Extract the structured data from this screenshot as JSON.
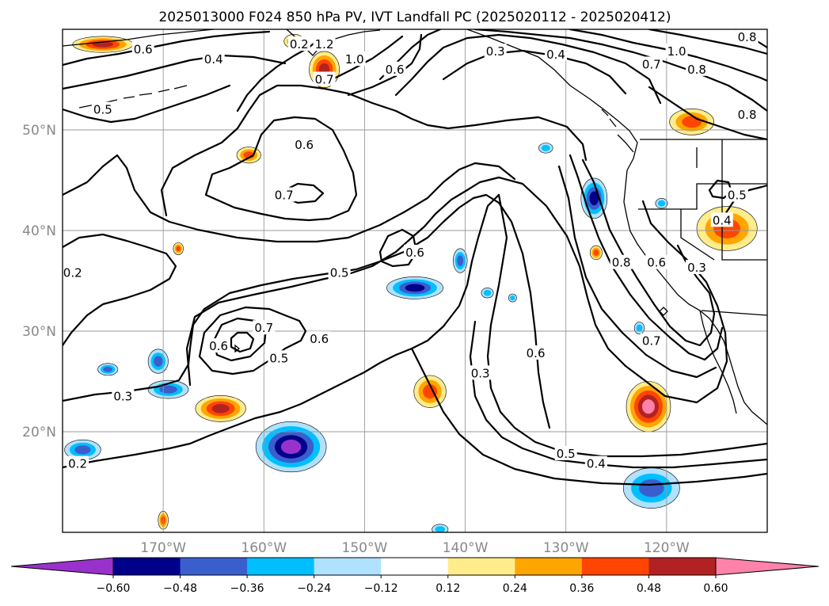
{
  "title": "2025013000 F024 850 hPa PV, IVT Landfall PC (2025020112 - 2025020412)",
  "map": {
    "projection": "PlateCarree",
    "extent": {
      "lon": [
        -180,
        -110
      ],
      "lat": [
        10,
        60
      ]
    },
    "lat_ticks": [
      {
        "value": 20,
        "label": "20°N"
      },
      {
        "value": 30,
        "label": "30°N"
      },
      {
        "value": 40,
        "label": "40°N"
      },
      {
        "value": 50,
        "label": "50°N"
      }
    ],
    "lon_ticks": [
      {
        "value": -170,
        "label": "170°W"
      },
      {
        "value": -160,
        "label": "160°W"
      },
      {
        "value": -150,
        "label": "150°W"
      },
      {
        "value": -140,
        "label": "140°W"
      },
      {
        "value": -130,
        "label": "130°W"
      },
      {
        "value": -120,
        "label": "120°W"
      }
    ],
    "gridlines": true
  },
  "contour_labels": [
    {
      "text": "0.6",
      "lon": -172,
      "lat": 58
    },
    {
      "text": "0.4",
      "lon": -165,
      "lat": 57
    },
    {
      "text": "0.2",
      "lon": -156.5,
      "lat": 58.5
    },
    {
      "text": "1.2",
      "lon": -154,
      "lat": 58.5
    },
    {
      "text": "0.7",
      "lon": -154,
      "lat": 55
    },
    {
      "text": "1.0",
      "lon": -151,
      "lat": 57
    },
    {
      "text": "0.6",
      "lon": -147,
      "lat": 56
    },
    {
      "text": "0.5",
      "lon": -176,
      "lat": 52
    },
    {
      "text": "0.3",
      "lon": -137,
      "lat": 57.8
    },
    {
      "text": "0.4",
      "lon": -131,
      "lat": 57.5
    },
    {
      "text": "1.0",
      "lon": -119,
      "lat": 57.8
    },
    {
      "text": "0.7",
      "lon": -121.5,
      "lat": 56.5
    },
    {
      "text": "0.8",
      "lon": -117,
      "lat": 56
    },
    {
      "text": "0.8",
      "lon": -112,
      "lat": 59.2
    },
    {
      "text": "0.8",
      "lon": -112,
      "lat": 51.5
    },
    {
      "text": "0.6",
      "lon": -156,
      "lat": 48.5
    },
    {
      "text": "0.7",
      "lon": -158,
      "lat": 43.5
    },
    {
      "text": "0.5",
      "lon": -113,
      "lat": 43.5
    },
    {
      "text": "0.4",
      "lon": -114.5,
      "lat": 41
    },
    {
      "text": "0.6",
      "lon": -145,
      "lat": 37.8
    },
    {
      "text": "0.5",
      "lon": -152.5,
      "lat": 35.8
    },
    {
      "text": "0.8",
      "lon": -124.5,
      "lat": 36.8
    },
    {
      "text": "0.6",
      "lon": -121,
      "lat": 36.8
    },
    {
      "text": "0.3",
      "lon": -117,
      "lat": 36.3
    },
    {
      "text": "0.2",
      "lon": -179,
      "lat": 35.8
    },
    {
      "text": "0.7",
      "lon": -160,
      "lat": 30.3
    },
    {
      "text": "0.6",
      "lon": -154.5,
      "lat": 29.2
    },
    {
      "text": "0.6",
      "lon": -164.5,
      "lat": 28.5
    },
    {
      "text": "0.5",
      "lon": -158.5,
      "lat": 27.3
    },
    {
      "text": "0.7",
      "lon": -121.5,
      "lat": 29
    },
    {
      "text": "0.6",
      "lon": -133,
      "lat": 27.8
    },
    {
      "text": "0.3",
      "lon": -138.5,
      "lat": 25.8
    },
    {
      "text": "0.3",
      "lon": -174,
      "lat": 23.5
    },
    {
      "text": "0.2",
      "lon": -178.5,
      "lat": 16.8
    },
    {
      "text": "0.5",
      "lon": -130,
      "lat": 17.8
    },
    {
      "text": "0.4",
      "lon": -127,
      "lat": 16.8
    }
  ],
  "colorbar": {
    "colors": [
      "#9932cc",
      "#00008b",
      "#3a5fcd",
      "#00bfff",
      "#b0e2ff",
      "#ffffff",
      "#ffec8b",
      "#ffa500",
      "#ff4500",
      "#b22222",
      "#ff82ab"
    ],
    "levels": [
      -0.6,
      -0.48,
      -0.36,
      -0.24,
      -0.12,
      0.12,
      0.24,
      0.36,
      0.48,
      0.6
    ],
    "tick_labels": [
      "−0.60",
      "−0.48",
      "−0.36",
      "−0.24",
      "−0.12",
      "0.12",
      "0.24",
      "0.36",
      "0.48",
      "0.60"
    ],
    "extend": "both"
  },
  "shaded_regions": [
    {
      "sign": "positive",
      "peak": 0.48,
      "lon": -176,
      "lat": 58.5,
      "rx": 3,
      "ry": 0.8
    },
    {
      "sign": "positive",
      "peak": 0.48,
      "lon": -154,
      "lat": 56,
      "rx": 1.5,
      "ry": 1.8
    },
    {
      "sign": "positive",
      "peak": 0.36,
      "lon": -157,
      "lat": 58.8,
      "rx": 1,
      "ry": 0.7
    },
    {
      "sign": "positive",
      "peak": 0.36,
      "lon": -161.5,
      "lat": 47.5,
      "rx": 1.2,
      "ry": 0.8
    },
    {
      "sign": "positive",
      "peak": 0.36,
      "lon": -168.5,
      "lat": 38.2,
      "rx": 0.5,
      "ry": 0.6
    },
    {
      "sign": "positive",
      "peak": 0.48,
      "lon": -164.3,
      "lat": 22.3,
      "rx": 2.5,
      "ry": 1.3
    },
    {
      "sign": "positive",
      "peak": 0.36,
      "lon": -143.5,
      "lat": 24,
      "rx": 1.6,
      "ry": 1.6
    },
    {
      "sign": "positive",
      "peak": 0.6,
      "lon": -121.8,
      "lat": 22.5,
      "rx": 2.2,
      "ry": 2.5
    },
    {
      "sign": "positive",
      "peak": 0.36,
      "lon": -114,
      "lat": 40.2,
      "rx": 3,
      "ry": 2.2
    },
    {
      "sign": "positive",
      "peak": 0.36,
      "lon": -117.5,
      "lat": 50.8,
      "rx": 2.2,
      "ry": 1.3
    },
    {
      "sign": "positive",
      "peak": 0.36,
      "lon": -127,
      "lat": 37.8,
      "rx": 0.6,
      "ry": 0.7
    },
    {
      "sign": "positive",
      "peak": 0.36,
      "lon": -170,
      "lat": 11.2,
      "rx": 0.5,
      "ry": 0.9
    },
    {
      "sign": "negative",
      "peak": -0.6,
      "lon": -157.3,
      "lat": 18.5,
      "rx": 3.5,
      "ry": 2.5
    },
    {
      "sign": "negative",
      "peak": -0.48,
      "lon": -145,
      "lat": 34.3,
      "rx": 2.8,
      "ry": 1.1
    },
    {
      "sign": "negative",
      "peak": -0.48,
      "lon": -127.2,
      "lat": 43.2,
      "rx": 1.3,
      "ry": 2
    },
    {
      "sign": "negative",
      "peak": -0.36,
      "lon": -121.5,
      "lat": 14.4,
      "rx": 2.8,
      "ry": 2
    },
    {
      "sign": "negative",
      "peak": -0.36,
      "lon": -178,
      "lat": 18.2,
      "rx": 1.8,
      "ry": 1
    },
    {
      "sign": "negative",
      "peak": -0.36,
      "lon": -169.5,
      "lat": 24.2,
      "rx": 2,
      "ry": 0.9
    },
    {
      "sign": "negative",
      "peak": -0.36,
      "lon": -170.5,
      "lat": 27,
      "rx": 1,
      "ry": 1.2
    },
    {
      "sign": "negative",
      "peak": -0.36,
      "lon": -175.5,
      "lat": 26.2,
      "rx": 1,
      "ry": 0.6
    },
    {
      "sign": "negative",
      "peak": -0.36,
      "lon": -140.5,
      "lat": 37,
      "rx": 0.7,
      "ry": 1.2
    },
    {
      "sign": "negative",
      "peak": -0.24,
      "lon": -137.8,
      "lat": 33.8,
      "rx": 0.6,
      "ry": 0.5
    },
    {
      "sign": "negative",
      "peak": -0.24,
      "lon": -122.7,
      "lat": 30.3,
      "rx": 0.5,
      "ry": 0.6
    },
    {
      "sign": "negative",
      "peak": -0.24,
      "lon": -132,
      "lat": 48.2,
      "rx": 0.7,
      "ry": 0.5
    },
    {
      "sign": "negative",
      "peak": -0.24,
      "lon": -120.5,
      "lat": 42.7,
      "rx": 0.6,
      "ry": 0.5
    },
    {
      "sign": "negative",
      "peak": -0.24,
      "lon": -135.3,
      "lat": 33.3,
      "rx": 0.4,
      "ry": 0.4
    },
    {
      "sign": "negative",
      "peak": -0.24,
      "lon": -142.5,
      "lat": 10.3,
      "rx": 0.8,
      "ry": 0.5
    }
  ]
}
